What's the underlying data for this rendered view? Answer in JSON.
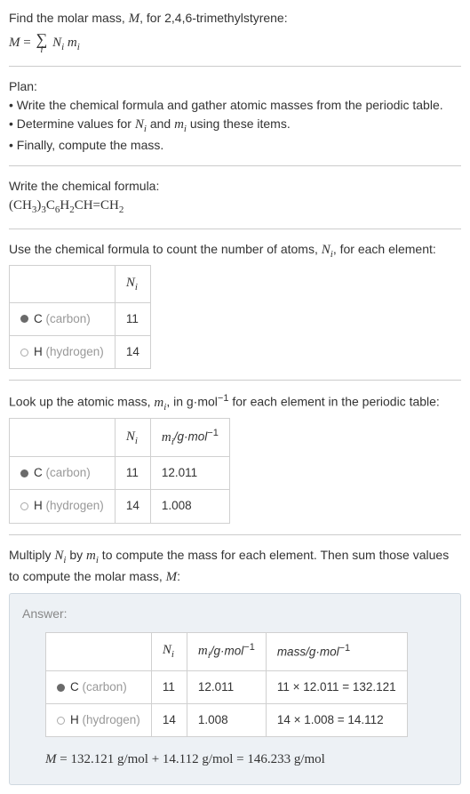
{
  "intro": {
    "line1_pre": "Find the molar mass, ",
    "line1_mid": ", for 2,4,6-trimethylstyrene:"
  },
  "plan": {
    "title": "Plan:",
    "b1_pre": "• Write the chemical formula and gather atomic masses from the periodic table.",
    "b2_pre": "• Determine values for ",
    "b2_mid": " and ",
    "b2_post": " using these items.",
    "b3": "• Finally, compute the mass."
  },
  "chem": {
    "title": "Write the chemical formula:"
  },
  "count": {
    "text_pre": "Use the chemical formula to count the number of atoms, ",
    "text_post": ", for each element:"
  },
  "t1": {
    "h2": "N",
    "r1_el": "C",
    "r1_name": "(carbon)",
    "r1_n": "11",
    "r2_el": "H",
    "r2_name": "(hydrogen)",
    "r2_n": "14"
  },
  "lookup": {
    "pre": "Look up the atomic mass, ",
    "mid": ", in g·mol",
    "post": " for each element in the periodic table:"
  },
  "t2": {
    "h2": "N",
    "h3_pre": "m",
    "h3_unit": "/g·mol",
    "r1_el": "C",
    "r1_name": "(carbon)",
    "r1_n": "11",
    "r1_m": "12.011",
    "r2_el": "H",
    "r2_name": "(hydrogen)",
    "r2_n": "14",
    "r2_m": "1.008"
  },
  "multiply": {
    "pre": "Multiply ",
    "mid1": " by ",
    "mid2": " to compute the mass for each element. Then sum those values to compute the molar mass, ",
    "post": ":"
  },
  "answer": {
    "label": "Answer:",
    "h2": "N",
    "h3_pre": "m",
    "h3_unit": "/g·mol",
    "h4": "mass/g·mol",
    "r1_el": "C",
    "r1_name": "(carbon)",
    "r1_n": "11",
    "r1_m": "12.011",
    "r1_mass": "11 × 12.011 = 132.121",
    "r2_el": "H",
    "r2_name": "(hydrogen)",
    "r2_n": "14",
    "r2_m": "1.008",
    "r2_mass": "14 × 1.008 = 14.112",
    "final_pre": "M",
    "final_eq": " = 132.121 g/mol + 14.112 g/mol = 146.233 g/mol"
  }
}
